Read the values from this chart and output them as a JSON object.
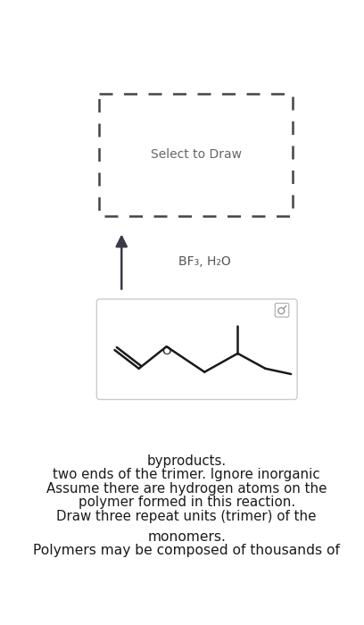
{
  "background_color": "#ffffff",
  "title_text1": "Polymers may be composed of thousands of",
  "title_text2": "monomers.",
  "body_text1": "Draw three repeat units (trimer) of the",
  "body_text2": "polymer formed in this reaction.",
  "body_text3": "Assume there are hydrogen atoms on the",
  "body_text4": "two ends of the trimer. Ignore inorganic",
  "body_text5": "byproducts.",
  "reagent_text": "BF₃, H₂O",
  "select_text": "Select to Draw",
  "text_color": "#1a1a1a",
  "arrow_color": "#3a3a4a",
  "molecule_color": "#1a1a1a",
  "box_edge_color": "#cccccc",
  "dash_box_color": "#444444",
  "reagent_color": "#555555",
  "select_color": "#666666",
  "mag_color": "#aaaaaa",
  "title_fontsize": 11.2,
  "body_fontsize": 10.8,
  "reagent_fontsize": 10,
  "select_fontsize": 10,
  "mol_lw": 1.8
}
